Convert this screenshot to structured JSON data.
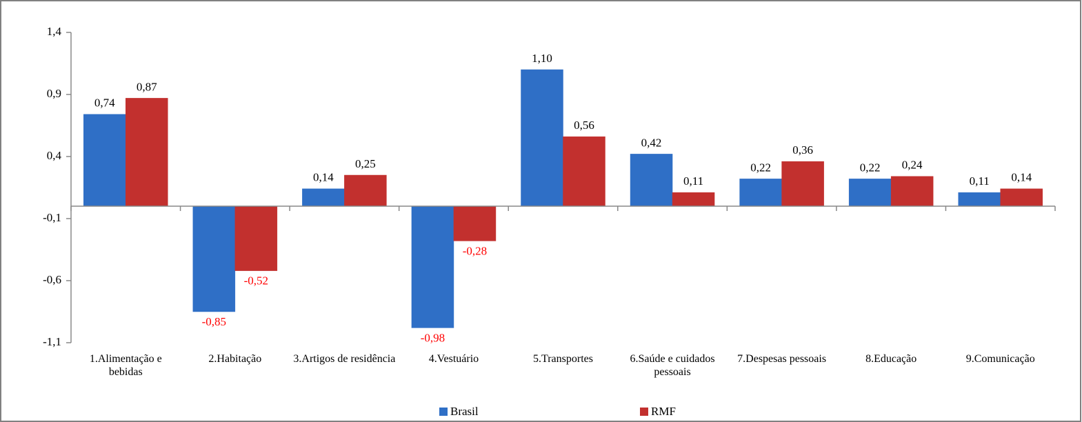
{
  "chart_data": {
    "type": "bar",
    "categories": [
      "1.Alimentação e bebidas",
      "2.Habitação",
      "3.Artigos de residência",
      "4.Vestuário",
      "5.Transportes",
      "6.Saúde e cuidados pessoais",
      "7.Despesas pessoais",
      "8.Educação",
      "9.Comunicação"
    ],
    "series": [
      {
        "name": "Brasil",
        "color": "#2f6fc6",
        "values": [
          0.74,
          -0.85,
          0.14,
          -0.98,
          1.1,
          0.42,
          0.22,
          0.22,
          0.11
        ],
        "value_labels": [
          "0,74",
          "-0,85",
          "0,14",
          "-0,98",
          "1,10",
          "0,42",
          "0,22",
          "0,22",
          "0,11"
        ]
      },
      {
        "name": "RMF",
        "color": "#c2302e",
        "values": [
          0.87,
          -0.52,
          0.25,
          -0.28,
          0.56,
          0.11,
          0.36,
          0.24,
          0.14
        ],
        "value_labels": [
          "0,87",
          "-0,52",
          "0,25",
          "-0,28",
          "0,56",
          "0,11",
          "0,36",
          "0,24",
          "0,14"
        ]
      }
    ],
    "ylim": [
      -1.1,
      1.4
    ],
    "yticks": [
      {
        "value": -1.1,
        "label": "-1,1"
      },
      {
        "value": -0.6,
        "label": "-0,6"
      },
      {
        "value": -0.1,
        "label": "-0,1"
      },
      {
        "value": 0.4,
        "label": "0,4"
      },
      {
        "value": 0.9,
        "label": "0,9"
      },
      {
        "value": 1.4,
        "label": "1,4"
      }
    ],
    "grid": false,
    "legend": "bottom"
  }
}
